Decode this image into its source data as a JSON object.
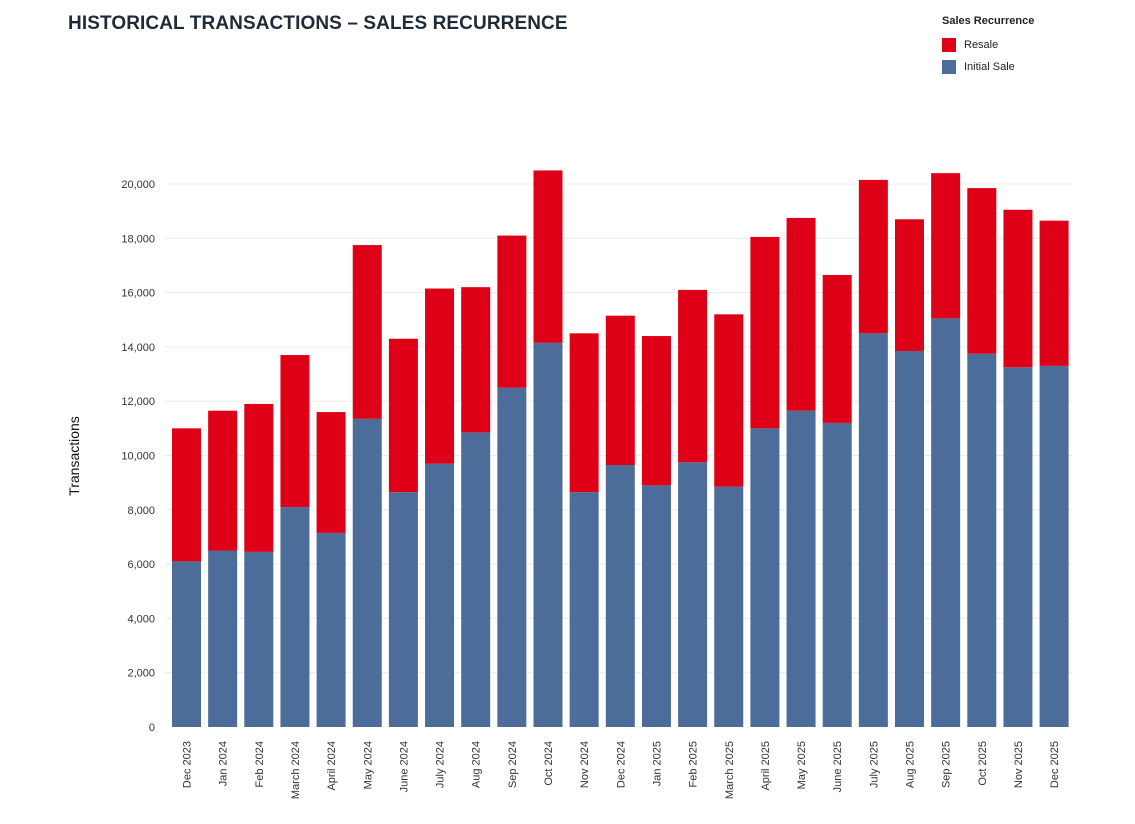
{
  "colors": {
    "resale": "#dd0016",
    "initial": "#4c6d99",
    "grid": "#ececec",
    "title": "#1f2a38"
  },
  "chart_data": {
    "type": "bar",
    "stacked": true,
    "title": "HISTORICAL TRANSACTIONS – SALES RECURRENCE",
    "xlabel": "",
    "ylabel": "Transactions",
    "ylim": [
      0,
      20000
    ],
    "yticks": [
      0,
      2000,
      4000,
      6000,
      8000,
      10000,
      12000,
      14000,
      16000,
      18000,
      20000
    ],
    "ytick_labels": [
      "0",
      "2,000",
      "4,000",
      "6,000",
      "8,000",
      "10,000",
      "12,000",
      "14,000",
      "16,000",
      "18,000",
      "20,000"
    ],
    "grid": true,
    "legend": {
      "title": "Sales Recurrence",
      "position": "top-right"
    },
    "categories": [
      "Dec 2023",
      "Jan 2024",
      "Feb 2024",
      "March 2024",
      "April 2024",
      "May 2024",
      "June 2024",
      "July 2024",
      "Aug 2024",
      "Sep 2024",
      "Oct 2024",
      "Nov 2024",
      "Dec 2024",
      "Jan 2025",
      "Feb 2025",
      "March 2025",
      "April 2025",
      "May 2025",
      "June 2025",
      "July 2025",
      "Aug 2025",
      "Sep 2025",
      "Oct 2025",
      "Nov 2025",
      "Dec 2025"
    ],
    "series": [
      {
        "name": "Initial Sale",
        "color": "#4c6d99",
        "values": [
          6100,
          6500,
          6450,
          8100,
          7150,
          11350,
          8650,
          9700,
          10850,
          12500,
          14150,
          8650,
          9650,
          8900,
          9750,
          8850,
          11000,
          11650,
          11200,
          14500,
          13850,
          15050,
          13750,
          13250,
          13300
        ]
      },
      {
        "name": "Resale",
        "color": "#dd0016",
        "values": [
          4900,
          5150,
          5450,
          5600,
          4450,
          6400,
          5650,
          6450,
          5350,
          5600,
          6350,
          5850,
          5500,
          5500,
          6350,
          6350,
          7050,
          7100,
          5450,
          5650,
          4850,
          5350,
          6100,
          5800,
          5350
        ]
      }
    ]
  }
}
